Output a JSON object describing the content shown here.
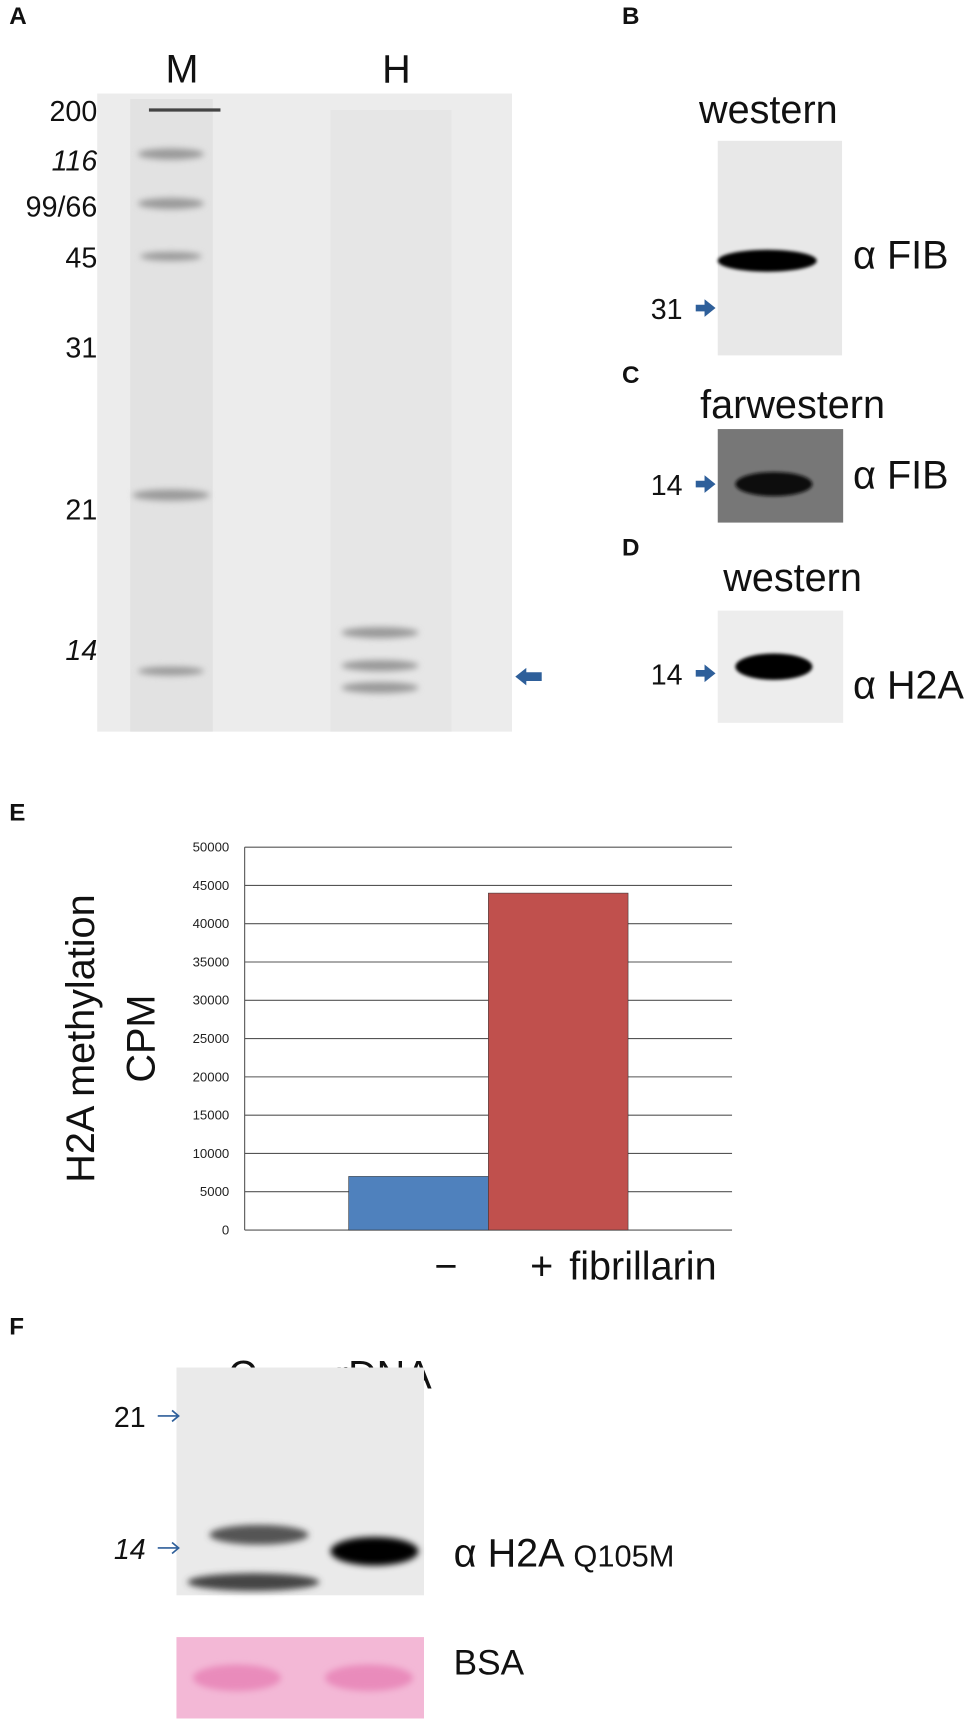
{
  "panels": {
    "A": {
      "label": "A",
      "lanes": [
        "M",
        "H"
      ],
      "markers": [
        "200",
        "116",
        "99/66",
        "45",
        "31",
        "21",
        "14"
      ]
    },
    "B": {
      "label": "B",
      "title": "western",
      "marker": "31",
      "antibody": "α FIB"
    },
    "C": {
      "label": "C",
      "title": "farwestern",
      "marker": "14",
      "antibody": "α FIB"
    },
    "D": {
      "label": "D",
      "title": "western",
      "marker": "14",
      "antibody": "α H2A"
    },
    "E": {
      "label": "E"
    },
    "F": {
      "label": "F",
      "lanes": [
        "C",
        "rDNA"
      ],
      "markers": [
        "21",
        "14"
      ],
      "antibody": "α H2A",
      "modification": "Q105M",
      "loading": "BSA"
    }
  },
  "chart_data": {
    "type": "bar",
    "ylabel": [
      "H2A methylation",
      "CPM"
    ],
    "xlabel": "fibrillarin",
    "categories": [
      "−",
      "+"
    ],
    "values": [
      7000,
      44000
    ],
    "colors": [
      "#4f81bd",
      "#c0504d"
    ],
    "ylim": [
      0,
      50000
    ],
    "yticks": [
      0,
      5000,
      10000,
      15000,
      20000,
      25000,
      30000,
      35000,
      40000,
      45000,
      50000
    ],
    "grid": true
  }
}
